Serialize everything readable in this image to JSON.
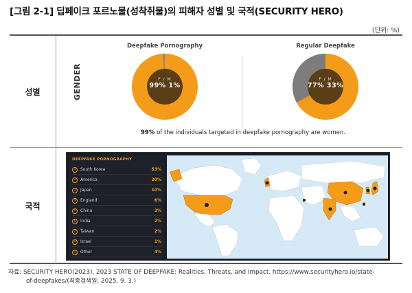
{
  "figure": {
    "title": "[그림 2-1] 딥페이크 포르노물(성착취물)의 피해자 성별 및 국적(SECURITY HERO)",
    "unit": "(단위: %)"
  },
  "table": {
    "rows": [
      {
        "header": "성별"
      },
      {
        "header": "국적"
      }
    ]
  },
  "gender": {
    "axis_label": "GENDER",
    "charts": [
      {
        "title": "Deepfake Pornography",
        "fm_label": "F / M",
        "female": 99,
        "male": 1,
        "value_text": "99%   1%"
      },
      {
        "title": "Regular Deepfake",
        "fm_label": "F / M",
        "female": 77,
        "male": 33,
        "value_text": "77%  33%"
      }
    ],
    "caption_bold": "99%",
    "caption_rest": " of the individuals targeted in deepfake pornography are women.",
    "colors": {
      "female": "#f49b1a",
      "male_pornography": "#8a8a8a",
      "male_regular": "#7d7d7d",
      "center": "#5a3e16"
    }
  },
  "nationality": {
    "list_title": "DEEPFAKE PORNOGRAPHY",
    "items": [
      {
        "rank": "1",
        "country": "South Korea",
        "pct": "53%"
      },
      {
        "rank": "2",
        "country": "America",
        "pct": "20%"
      },
      {
        "rank": "3",
        "country": "Japan",
        "pct": "10%"
      },
      {
        "rank": "4",
        "country": "England",
        "pct": "6%"
      },
      {
        "rank": "5",
        "country": "China",
        "pct": "3%"
      },
      {
        "rank": "6",
        "country": "India",
        "pct": "2%"
      },
      {
        "rank": "7",
        "country": "Taiwan",
        "pct": "2%"
      },
      {
        "rank": "8",
        "country": "Israel",
        "pct": "1%"
      },
      {
        "rank": "9",
        "country": "Other",
        "pct": "4%"
      }
    ],
    "colors": {
      "highlight": "#f49b1a",
      "land": "#ffffff",
      "ocean": "#d5eaf6",
      "panel": "#1e2129"
    }
  },
  "source": {
    "line1": "자료: SECURITY HERO(2023), 2023 STATE OF DEEPFAKE: Realities, Threats, and Impact. https://www.securityhero.io/state-",
    "line2": "of-deepfakes/(최종검색일: 2025. 9. 3.)"
  }
}
